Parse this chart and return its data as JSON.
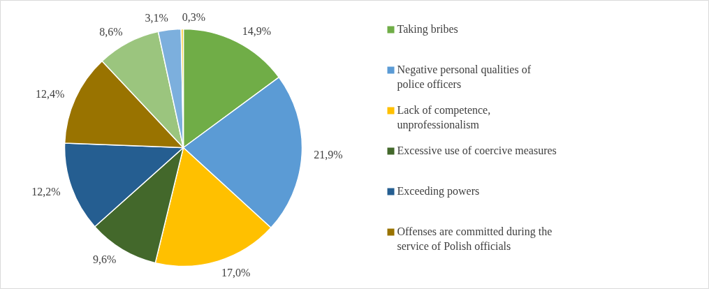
{
  "chart_data": {
    "type": "pie",
    "categories": [
      "Taking bribes",
      "Negative personal qualities of police officers",
      "Lack of competence, unprofessionalism",
      "Excessive use of coercive measures",
      "Exceeding powers",
      "Offenses are committed during the service of Polish officials",
      null,
      null,
      null
    ],
    "values": [
      14.9,
      21.9,
      17.0,
      9.6,
      12.2,
      12.4,
      8.6,
      3.1,
      0.3
    ],
    "value_labels": [
      "14,9%",
      "21,9%",
      "17,0%",
      "9,6%",
      "12,2%",
      "12,4%",
      "8,6%",
      "3,1%",
      "0,3%"
    ],
    "colors": [
      "#70ad47",
      "#5b9bd5",
      "#ffc000",
      "#43682b",
      "#255e91",
      "#997300",
      "#9bc57e",
      "#7cafdd",
      "#ffcd33"
    ],
    "legend": "right"
  }
}
